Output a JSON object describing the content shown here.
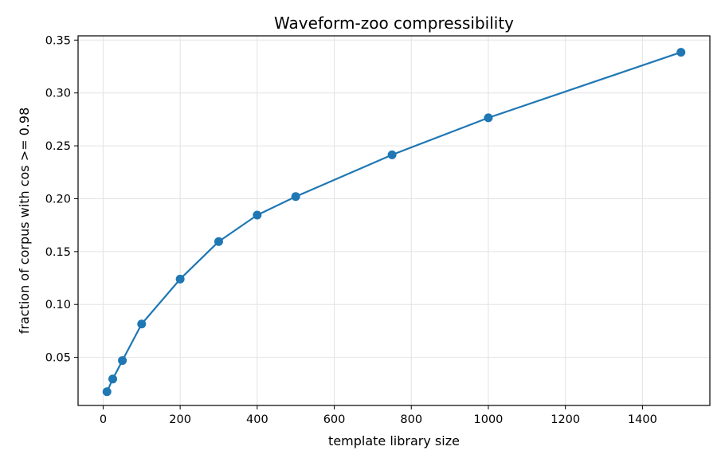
{
  "chart_data": {
    "type": "line",
    "title": "Waveform-zoo compressibility",
    "xlabel": "template library size",
    "ylabel": "fraction of corpus with cos >= 0.98",
    "xlim": [
      -65,
      1575
    ],
    "ylim": [
      0.0045,
      0.354
    ],
    "xticks": [
      0,
      200,
      400,
      600,
      800,
      1000,
      1200,
      1400
    ],
    "yticks": [
      0.05,
      0.1,
      0.15,
      0.2,
      0.25,
      0.3,
      0.35
    ],
    "grid": true,
    "series": [
      {
        "color": "#1f77b4",
        "marker": "circle",
        "x": [
          10,
          25,
          50,
          100,
          200,
          300,
          400,
          500,
          750,
          1000,
          1500
        ],
        "y": [
          0.0175,
          0.0295,
          0.047,
          0.0815,
          0.124,
          0.1595,
          0.1845,
          0.202,
          0.2415,
          0.2765,
          0.3385
        ]
      }
    ]
  }
}
